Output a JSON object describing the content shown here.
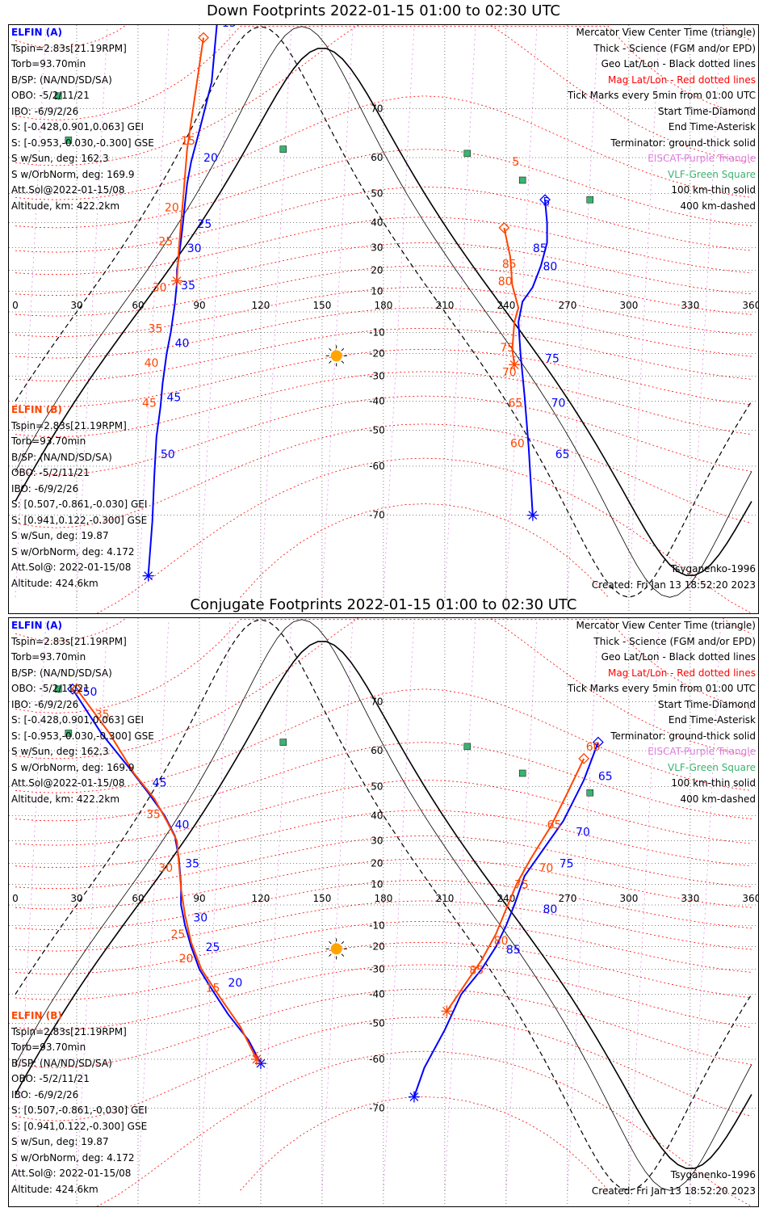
{
  "panels": [
    {
      "title": "Down Footprints 2022-01-15 01:00 to 02:30 UTC",
      "sc_a": {
        "name": "ELFIN (A)",
        "lines": [
          "Tspin=2.83s[21.19RPM]",
          "Torb=93.70min",
          "B/SP: (NA/ND/SD/SA)",
          "OBO: -5/2/11/21",
          "IBO: -6/9/2/26",
          "S: [-0.428,0.901,0.063] GEI",
          "S: [-0.953,-0.030,-0.300] GSE",
          "S w/Sun, deg: 162.3",
          "S w/OrbNorm, deg: 169.9",
          "Att.Sol@2022-01-15/08",
          "Altitude, km: 422.2km"
        ]
      },
      "sc_b": {
        "name": "ELFIN (B)",
        "lines": [
          "Tspin=2.83s[21.19RPM]",
          "Torb=93.70min",
          "B/SP: (NA/ND/SD/SA)",
          "OBO: -5/2/11/21",
          "IBO: -6/9/2/26",
          "S: [0.507,-0.861,-0.030] GEI",
          "S: [0.941,0.122,-0.300] GSE",
          "S w/Sun, deg: 19.87",
          "S w/OrbNorm, deg: 4.172",
          "Att.Sol@: 2022-01-15/08",
          "Altitude: 424.6km"
        ]
      },
      "model": "Tsyganenko-1996",
      "created": "Created: Fri Jan 13 18:52:20 2023"
    },
    {
      "title": "Conjugate Footprints 2022-01-15 01:00 to 02:30 UTC",
      "sc_a": {
        "name": "ELFIN (A)",
        "lines": [
          "Tspin=2.83s[21.19RPM]",
          "Torb=93.70min",
          "B/SP: (NA/ND/SD/SA)",
          "OBO: -5/2/11/21",
          "IBO: -6/9/2/26",
          "S: [-0.428,0.901,0.063] GEI",
          "S: [-0.953,-0.030,-0.300] GSE",
          "S w/Sun, deg: 162.3",
          "S w/OrbNorm, deg: 169.9",
          "Att.Sol@2022-01-15/08",
          "Altitude, km: 422.2km"
        ]
      },
      "sc_b": {
        "name": "ELFIN (B)",
        "lines": [
          "Tspin=2.83s[21.19RPM]",
          "Torb=93.70min",
          "B/SP: (NA/ND/SD/SA)",
          "OBO: -5/2/11/21",
          "IBO: -6/9/2/26",
          "S: [0.507,-0.861,-0.030] GEI",
          "S: [0.941,0.122,-0.300] GSE",
          "S w/Sun, deg: 19.87",
          "S w/OrbNorm, deg: 4.172",
          "Att.Sol@: 2022-01-15/08",
          "Altitude: 424.6km"
        ]
      },
      "model": "Tsyganenko-1996",
      "created": "Created: Fri Jan 13 18:52:20 2023"
    }
  ],
  "legend": [
    {
      "text": "Mercator View Center Time (triangle)",
      "color": "#000000"
    },
    {
      "text": "Thick - Science (FGM and/or EPD)",
      "color": "#000000"
    },
    {
      "text": "Geo Lat/Lon - Black dotted lines",
      "color": "#000000"
    },
    {
      "text": "Mag Lat/Lon - Red dotted lines",
      "color": "#ff0000"
    },
    {
      "text": "Tick Marks every 5min from 01:00 UTC",
      "color": "#000000"
    },
    {
      "text": "Start Time-Diamond",
      "color": "#000000"
    },
    {
      "text": "End Time-Asterisk",
      "color": "#000000"
    },
    {
      "text": "Terminator: ground-thick solid",
      "color": "#000000"
    },
    {
      "text": "EISCAT-Purple Triangle",
      "color": "#e07ee0"
    },
    {
      "text": "VLF-Green Square",
      "color": "#3cb371"
    },
    {
      "text": "100 km-thin solid",
      "color": "#000000"
    },
    {
      "text": "400 km-dashed",
      "color": "#000000"
    }
  ],
  "colors": {
    "sc_a": "#0000ff",
    "sc_b": "#ff4500",
    "sun": "#ffa500",
    "mag_grid": "#ff0000",
    "pole_lines": "#e07ee0",
    "vlf": "#3cb371"
  },
  "chart_data": [
    {
      "type": "scatter",
      "title": "Down Footprints 2022-01-15 01:00 to 02:30 UTC",
      "xlim": [
        0,
        360
      ],
      "ylim": [
        -85,
        85
      ],
      "lon_ticks": [
        "0",
        "30",
        "60",
        "90",
        "120",
        "150",
        "180",
        "210",
        "240",
        "270",
        "300",
        "330",
        "360"
      ],
      "lat_ticks": [
        "70",
        "60",
        "50",
        "40",
        "30",
        "20",
        "10",
        "-10",
        "-20",
        "-30",
        "-40",
        "-50",
        "-60",
        "-70"
      ],
      "sun": {
        "lon": 157,
        "lat": -21
      },
      "vlf_sites": [
        [
          21,
          72
        ],
        [
          26,
          64
        ],
        [
          131,
          62
        ],
        [
          221,
          61
        ],
        [
          248,
          54
        ],
        [
          281,
          48
        ]
      ],
      "series": [
        {
          "name": "ELFIN (A)",
          "color": "#0000ff",
          "track": [
            [
              99,
              81
            ],
            [
              96,
              74
            ],
            [
              90,
              66
            ],
            [
              86,
              59
            ],
            [
              84,
              53
            ],
            [
              83,
              47
            ],
            [
              82,
              40
            ],
            [
              81,
              33
            ],
            [
              80,
              26
            ],
            [
              79,
              20
            ],
            [
              79,
              14
            ],
            [
              78,
              4
            ],
            [
              76,
              -10
            ],
            [
              74,
              -20
            ],
            [
              72,
              -33
            ],
            [
              71,
              -42
            ],
            [
              69,
              -52
            ],
            [
              68,
              -62
            ],
            [
              67,
              -71
            ],
            [
              65,
              -78
            ]
          ],
          "ticks": [
            {
              "t": "15",
              "lon": 101,
              "lat": 80
            },
            {
              "t": "20",
              "lon": 92,
              "lat": 59
            },
            {
              "t": "25",
              "lon": 89,
              "lat": 38
            },
            {
              "t": "30",
              "lon": 84,
              "lat": 28
            },
            {
              "t": "35",
              "lon": 81,
              "lat": 11
            },
            {
              "t": "40",
              "lon": 78,
              "lat": -17
            },
            {
              "t": "45",
              "lon": 74,
              "lat": -40
            },
            {
              "t": "50",
              "lon": 71,
              "lat": -58
            }
          ]
        },
        {
          "name": "ELFIN (B)",
          "color": "#ff4500",
          "track": [
            [
              92,
              79
            ],
            [
              84,
              62
            ],
            [
              82,
              48
            ],
            [
              80,
              30
            ],
            [
              79,
              15
            ]
          ],
          "ticks": [
            {
              "t": "15",
              "lon": 81,
              "lat": 63
            },
            {
              "t": "20",
              "lon": 73,
              "lat": 44
            },
            {
              "t": "25",
              "lon": 70,
              "lat": 31
            },
            {
              "t": "30",
              "lon": 67,
              "lat": 10
            },
            {
              "t": "35",
              "lon": 65,
              "lat": -10
            },
            {
              "t": "40",
              "lon": 63,
              "lat": -26
            },
            {
              "t": "45",
              "lon": 62,
              "lat": -42
            }
          ]
        },
        {
          "name": "ELFIN (A) 02:00-02:30",
          "color": "#0000ff",
          "track": [
            [
              259,
              48
            ],
            [
              260,
              40
            ],
            [
              260,
              32
            ],
            [
              257,
              22
            ],
            [
              253,
              12
            ],
            [
              248,
              5
            ],
            [
              246,
              -5
            ],
            [
              247,
              -20
            ],
            [
              249,
              -38
            ],
            [
              251,
              -55
            ],
            [
              253,
              -70
            ]
          ],
          "ticks": [
            {
              "t": "5",
              "lon": 258,
              "lat": 46
            },
            {
              "t": "85",
              "lon": 253,
              "lat": 28
            },
            {
              "t": "80",
              "lon": 258,
              "lat": 20
            },
            {
              "t": "75",
              "lon": 259,
              "lat": -24
            },
            {
              "t": "70",
              "lon": 262,
              "lat": -42
            },
            {
              "t": "65",
              "lon": 264,
              "lat": -58
            }
          ]
        },
        {
          "name": "ELFIN (B) 02:00-02:30",
          "color": "#ff4500",
          "track": [
            [
              239,
              38
            ],
            [
              242,
              26
            ],
            [
              243,
              13
            ],
            [
              246,
              2
            ],
            [
              244,
              -5
            ],
            [
              243,
              -18
            ],
            [
              244,
              -25
            ]
          ],
          "ticks": [
            {
              "t": "5",
              "lon": 243,
              "lat": 58
            },
            {
              "t": "85",
              "lon": 238,
              "lat": 21
            },
            {
              "t": "80",
              "lon": 236,
              "lat": 13
            },
            {
              "t": "75",
              "lon": 237,
              "lat": -19
            },
            {
              "t": "70",
              "lon": 238,
              "lat": -30
            },
            {
              "t": "65",
              "lon": 241,
              "lat": -42
            },
            {
              "t": "60",
              "lon": 242,
              "lat": -55
            }
          ]
        }
      ]
    },
    {
      "type": "scatter",
      "title": "Conjugate Footprints 2022-01-15 01:00 to 02:30 UTC",
      "xlim": [
        0,
        360
      ],
      "ylim": [
        -85,
        85
      ],
      "lon_ticks": [
        "0",
        "30",
        "60",
        "90",
        "120",
        "150",
        "180",
        "210",
        "240",
        "270",
        "300",
        "330",
        "360"
      ],
      "lat_ticks": [
        "70",
        "60",
        "50",
        "40",
        "30",
        "20",
        "10",
        "-10",
        "-20",
        "-30",
        "-40",
        "-50",
        "-60",
        "-70"
      ],
      "sun": {
        "lon": 157,
        "lat": -21
      },
      "vlf_sites": [
        [
          21,
          72
        ],
        [
          26,
          64
        ],
        [
          131,
          62
        ],
        [
          221,
          61
        ],
        [
          248,
          54
        ],
        [
          281,
          48
        ]
      ],
      "series": [
        {
          "name": "ELFIN (A)",
          "color": "#0000ff",
          "track": [
            [
              28,
              72
            ],
            [
              42,
              64
            ],
            [
              55,
              56
            ],
            [
              65,
              48
            ],
            [
              73,
              40
            ],
            [
              78,
              32
            ],
            [
              80,
              22
            ],
            [
              81,
              10
            ],
            [
              81,
              0
            ],
            [
              83,
              -10
            ],
            [
              86,
              -20
            ],
            [
              90,
              -30
            ],
            [
              96,
              -38
            ],
            [
              104,
              -47
            ],
            [
              114,
              -55
            ],
            [
              120,
              -61
            ]
          ],
          "ticks": [
            {
              "t": "50",
              "lon": 33,
              "lat": 71
            },
            {
              "t": "45",
              "lon": 67,
              "lat": 50
            },
            {
              "t": "40",
              "lon": 78,
              "lat": 35
            },
            {
              "t": "35",
              "lon": 83,
              "lat": 18
            },
            {
              "t": "30",
              "lon": 87,
              "lat": -8
            },
            {
              "t": "25",
              "lon": 93,
              "lat": -22
            },
            {
              "t": "20",
              "lon": 104,
              "lat": -37
            }
          ]
        },
        {
          "name": "ELFIN (B)",
          "color": "#ff4500",
          "track": [
            [
              30,
              72
            ],
            [
              46,
              64
            ],
            [
              58,
              54
            ],
            [
              68,
              46
            ],
            [
              74,
              38
            ],
            [
              79,
              30
            ],
            [
              80,
              20
            ],
            [
              81,
              8
            ],
            [
              83,
              -5
            ],
            [
              86,
              -18
            ],
            [
              91,
              -30
            ],
            [
              100,
              -41
            ],
            [
              110,
              -51
            ],
            [
              118,
              -60
            ]
          ],
          "ticks": [
            {
              "t": "35",
              "lon": 39,
              "lat": 67
            },
            {
              "t": "35",
              "lon": 64,
              "lat": 39
            },
            {
              "t": "30",
              "lon": 70,
              "lat": 16
            },
            {
              "t": "25",
              "lon": 76,
              "lat": -16
            },
            {
              "t": "20",
              "lon": 80,
              "lat": -27
            },
            {
              "t": "15",
              "lon": 93,
              "lat": -39
            }
          ]
        },
        {
          "name": "ELFIN (A) 02:00-02:30",
          "color": "#0000ff",
          "track": [
            [
              285,
              62
            ],
            [
              278,
              52
            ],
            [
              268,
              38
            ],
            [
              258,
              26
            ],
            [
              249,
              14
            ],
            [
              244,
              0
            ],
            [
              240,
              -10
            ],
            [
              235,
              -20
            ],
            [
              228,
              -30
            ],
            [
              218,
              -40
            ],
            [
              210,
              -52
            ],
            [
              200,
              -62
            ],
            [
              195,
              -68
            ]
          ],
          "ticks": [
            {
              "t": "65",
              "lon": 285,
              "lat": 52
            },
            {
              "t": "70",
              "lon": 274,
              "lat": 32
            },
            {
              "t": "75",
              "lon": 266,
              "lat": 18
            },
            {
              "t": "80",
              "lon": 258,
              "lat": -4
            },
            {
              "t": "85",
              "lon": 240,
              "lat": -23
            }
          ]
        },
        {
          "name": "ELFIN (B) 02:00-02:30",
          "color": "#ff4500",
          "track": [
            [
              278,
              58
            ],
            [
              270,
              48
            ],
            [
              262,
              36
            ],
            [
              252,
              22
            ],
            [
              245,
              10
            ],
            [
              240,
              -2
            ],
            [
              235,
              -14
            ],
            [
              228,
              -26
            ],
            [
              220,
              -36
            ],
            [
              211,
              -46
            ]
          ],
          "ticks": [
            {
              "t": "60",
              "lon": 279,
              "lat": 60
            },
            {
              "t": "65",
              "lon": 260,
              "lat": 35
            },
            {
              "t": "70",
              "lon": 256,
              "lat": 16
            },
            {
              "t": "75",
              "lon": 244,
              "lat": 8
            },
            {
              "t": "80",
              "lon": 234,
              "lat": -19
            },
            {
              "t": "85",
              "lon": 222,
              "lat": -32
            }
          ]
        }
      ]
    }
  ]
}
